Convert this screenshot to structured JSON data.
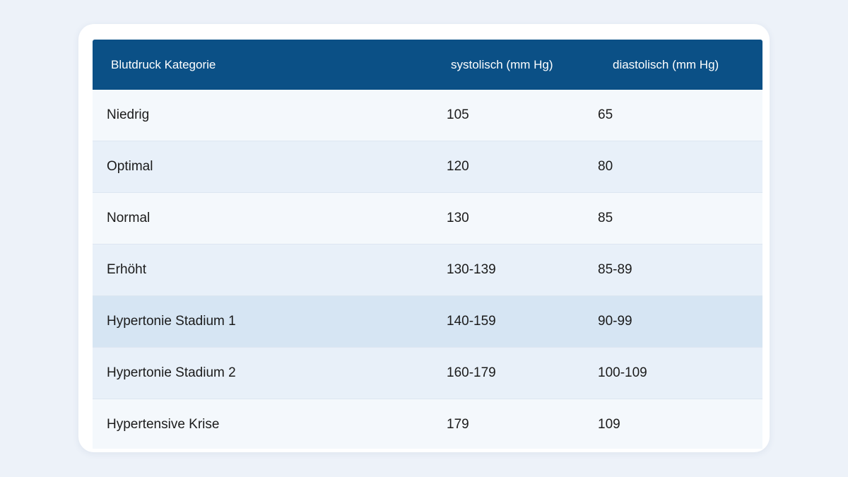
{
  "table": {
    "headers": [
      "Blutdruck Kategorie",
      "systolisch (mm Hg)",
      "diastolisch (mm Hg)"
    ],
    "rows": [
      [
        "Niedrig",
        "105",
        "65"
      ],
      [
        "Optimal",
        "120",
        "80"
      ],
      [
        "Normal",
        "130",
        "85"
      ],
      [
        "Erhöht",
        "130-139",
        "85-89"
      ],
      [
        "Hypertonie Stadium 1",
        "140-159",
        "90-99"
      ],
      [
        "Hypertonie Stadium 2",
        "160-179",
        "100-109"
      ],
      [
        "Hypertensive Krise",
        "179",
        "109"
      ]
    ]
  },
  "colors": {
    "page_background": "#edf2f9",
    "header_background": "#0b5086",
    "row_light": "#f4f8fc",
    "row_mid": "#e8f0f9",
    "row_highlight": "#d6e5f3"
  }
}
